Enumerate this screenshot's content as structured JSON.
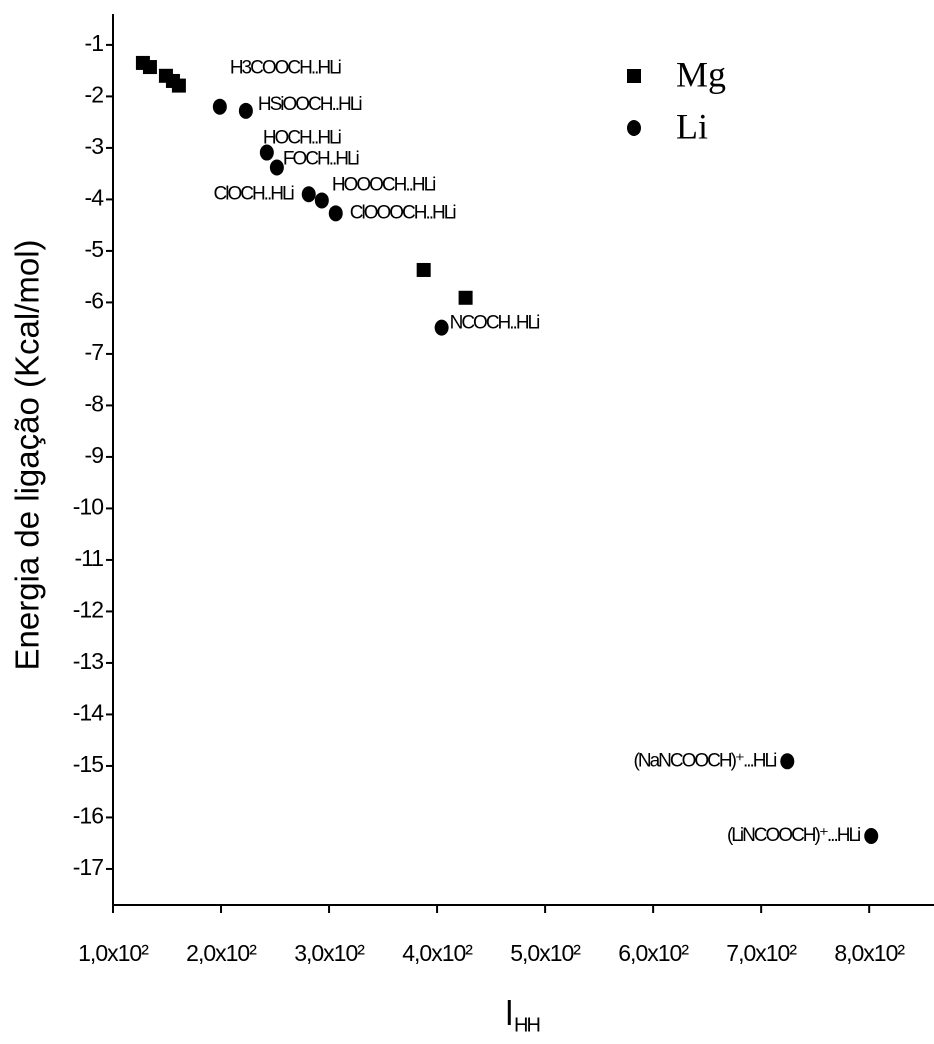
{
  "chart_data": {
    "type": "scatter",
    "ylabel": "Energia de ligação (Kcal/mol)",
    "xlabel": "l",
    "xlabel_subscript": "HH",
    "xlim": [
      100,
      860
    ],
    "ylim": [
      -17.7,
      -0.4
    ],
    "xticks": [
      {
        "value": 100,
        "label": "1,0x10²"
      },
      {
        "value": 200,
        "label": "2,0x10²"
      },
      {
        "value": 300,
        "label": "3,0x10²"
      },
      {
        "value": 400,
        "label": "4,0x10²"
      },
      {
        "value": 500,
        "label": "5,0x10²"
      },
      {
        "value": 600,
        "label": "6,0x10²"
      },
      {
        "value": 700,
        "label": "7,0x10²"
      },
      {
        "value": 800,
        "label": "8,0x10²"
      }
    ],
    "yticks": [
      -1,
      -2,
      -3,
      -4,
      -5,
      -6,
      -7,
      -8,
      -9,
      -10,
      -11,
      -12,
      -13,
      -14,
      -15,
      -16,
      -17
    ],
    "legend": "top right",
    "series": [
      {
        "name": "Mg",
        "marker": "square",
        "color": "#000000",
        "x": [
          127.7,
          134.2,
          149,
          155.5,
          161,
          387.6,
          426.4
        ],
        "values": [
          -1.35,
          -1.43,
          -1.6,
          -1.7,
          -1.79,
          -5.37,
          -5.91
        ]
      },
      {
        "name": "Li",
        "marker": "circle",
        "color": "#000000",
        "x": [
          198.9,
          223,
          242.4,
          251.7,
          281.2,
          293.3,
          306.2,
          404.2,
          724.2,
          801.9
        ],
        "values": [
          -2.2,
          -2.28,
          -3.09,
          -3.38,
          -3.9,
          -4.02,
          -4.27,
          -6.49,
          -14.91,
          -16.36
        ],
        "point_labels": [
          "H3COOCH..HLi",
          "HSiOOCH..HLi",
          "HOCH..HLi",
          "FOCH..HLi",
          "ClOCH..HLi",
          "HOOOCH..HLi",
          "ClOOOCH..HLi",
          "NCOCH..HLi",
          "(NaNCOOCH)⁺...HLi",
          "(LiNCOOCH)⁺...HLi"
        ]
      }
    ]
  }
}
